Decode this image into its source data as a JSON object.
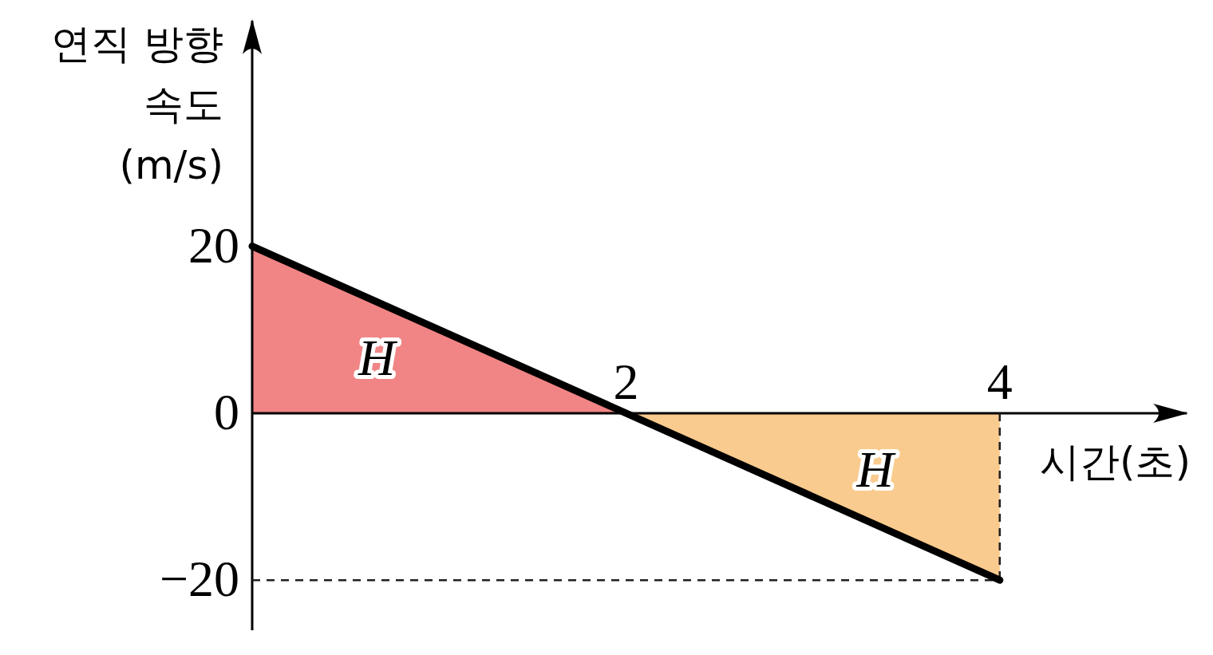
{
  "chart_data": {
    "type": "line",
    "xlabel": "시간(초)",
    "ylabel": "연직 방향\n속도\n(m/s)",
    "xlim": [
      0,
      5
    ],
    "ylim": [
      -26,
      47
    ],
    "xticks": [
      2,
      4
    ],
    "yticks": [
      -20,
      0,
      20
    ],
    "series": [
      {
        "type": "area",
        "color": "#f18585",
        "x": [
          0,
          2
        ],
        "values": [
          20,
          0
        ]
      },
      {
        "type": "area",
        "color": "#facb8e",
        "x": [
          2,
          4
        ],
        "values": [
          0,
          -20
        ]
      },
      {
        "color": "#000000",
        "x": [
          0,
          4
        ],
        "values": [
          20,
          -20
        ]
      }
    ],
    "ref_lines": [
      {
        "axis": "y",
        "value": -20,
        "color": "#231f20",
        "line_style": "dashed"
      },
      {
        "axis": "x",
        "value": 4,
        "color": "#231f20",
        "line_style": "dashed"
      }
    ],
    "annotations": [
      "H",
      "H"
    ]
  }
}
